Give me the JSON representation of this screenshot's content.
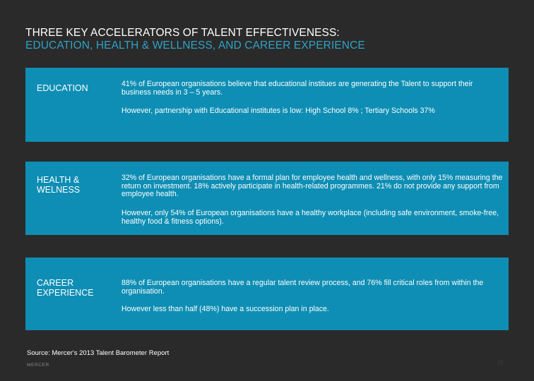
{
  "header": {
    "title_line1": "THREE KEY ACCELERATORS OF TALENT EFFECTIVENESS:",
    "title_line2": "EDUCATION, HEALTH & WELLNESS, AND CAREER EXPERIENCE"
  },
  "panels": [
    {
      "label": "EDUCATION",
      "para1": "41% of European organisations believe that educational institues are generating the Talent to support their business needs in 3 – 5 years.",
      "para2": "However, partnership with Educational institutes is low: High School 8% ; Tertiary Schools 37%"
    },
    {
      "label": "HEALTH & WELNESS",
      "para1": "32% of European organisations have a formal plan for employee health and wellness, with only 15% measuring the return on investment. 18% actively participate in health-related programmes. 21% do not provide any support from employee health.",
      "para2": "However, only 54% of European organisations have a healthy workplace (including safe environment, smoke-free, healthy food & fitness options)."
    },
    {
      "label": "CAREER EXPERIENCE",
      "para1": "88% of European organisations have a regular talent review process, and 76% fill critical roles from within the organisation.",
      "para2": "However less than half (48%) have a succession plan in place."
    }
  ],
  "footer": {
    "source": "Source: Mercer's 2013 Talent Barometer Report",
    "logo_text": "MERCER",
    "page_number": "15"
  },
  "colors": {
    "background": "#2a2a2a",
    "panel": "#0e8eb4",
    "accent_title": "#2ea3c7"
  }
}
